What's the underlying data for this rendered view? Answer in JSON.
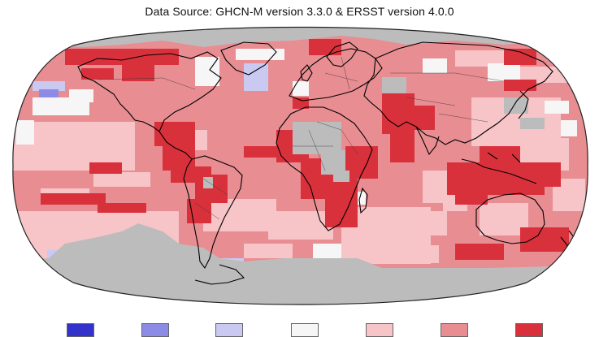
{
  "title": "Data Source: GHCN-M version 3.3.0 & ERSST version 4.0.0",
  "legend": {
    "swatches": [
      {
        "name": "much-cooler",
        "color": "#3333cc"
      },
      {
        "name": "cooler",
        "color": "#8c8ce6"
      },
      {
        "name": "slightly-cooler",
        "color": "#c9c9f2"
      },
      {
        "name": "near-average",
        "color": "#f6f6f6"
      },
      {
        "name": "slightly-warmer",
        "color": "#f7c4c8"
      },
      {
        "name": "warmer",
        "color": "#e88d92"
      },
      {
        "name": "much-warmer",
        "color": "#d9313c"
      }
    ]
  },
  "colors": {
    "ocean_base": "#e88d92",
    "no_data": "#bcbcbc",
    "coastline": "#000000",
    "background": "#ffffff"
  }
}
